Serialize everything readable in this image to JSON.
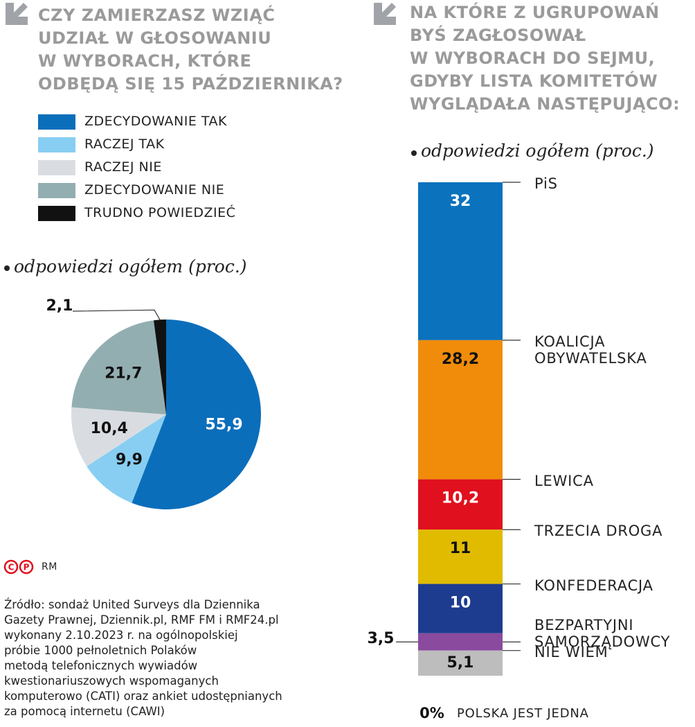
{
  "source": [
    "Źródło: sondaż United Surveys dla Dziennika",
    "Gazety Prawnej, Dziennik.pl, RMF FM i RMF24.pl",
    "wykonany 2.10.2023 r. na ogólnopolskiej",
    "próbie 1000 pełnoletnich Polaków",
    "metodą telefonicznych wywiadów",
    "kwestionariuszowych wspomaganych",
    "komputerowo (CATI) oraz ankiet udostępnianych",
    "za pomocą internetu (CAWI)"
  ],
  "credit": "RM",
  "rights_marks": [
    "C",
    "P"
  ],
  "chart_data": [
    {
      "type": "pie",
      "title": [
        "CZY ZAMIERZASZ WZIĄĆ",
        "UDZIAŁ W GŁOSOWANIU",
        "W WYBORACH, KTÓRE",
        "ODBĘDĄ SIĘ 15 PAŹDZIERNIKA?"
      ],
      "subtitle": "odpowiedzi ogółem (proc.)",
      "categories": [
        "ZDECYDOWANIE TAK",
        "RACZEJ TAK",
        "RACZEJ NIE",
        "ZDECYDOWANIE NIE",
        "TRUDNO POWIEDZIEĆ"
      ],
      "values": [
        55.9,
        9.9,
        10.4,
        21.7,
        2.1
      ],
      "value_labels": [
        "55,9",
        "9,9",
        "10,4",
        "21,7",
        "2,1"
      ],
      "colors": [
        "#0b6ebb",
        "#87cef2",
        "#d9dde1",
        "#93aeb1",
        "#111111"
      ]
    },
    {
      "type": "stacked_bar",
      "title": [
        "NA KTÓRE Z UGRUPOWAŃ",
        "BYŚ ZAGŁOSOWAŁ",
        "W WYBORACH DO SEJMU,",
        "GDYBY LISTA KOMITETÓW",
        "WYGLĄDAŁA NASTĘPUJĄCO:"
      ],
      "subtitle": "odpowiedzi ogółem (proc.)",
      "categories": [
        "PiS",
        "KOALICJA OBYWATELSKA",
        "LEWICA",
        "TRZECIA DROGA",
        "KONFEDERACJA",
        "BEZPARTYJNI SAMORZĄDOWCY",
        "NIE WIEM",
        "POLSKA JEST JEDNA"
      ],
      "values": [
        32,
        28.2,
        10.2,
        11,
        10,
        3.5,
        5.1,
        0
      ],
      "value_labels": [
        "32",
        "28,2",
        "10,2",
        "11",
        "10",
        "3,5",
        "5,1",
        "0%"
      ],
      "colors": [
        "#0b72bd",
        "#f08c0a",
        "#e0101e",
        "#e0bb00",
        "#1d3c8f",
        "#8a4a9e",
        "#bdbdbd",
        "#bdbdbd"
      ]
    }
  ]
}
